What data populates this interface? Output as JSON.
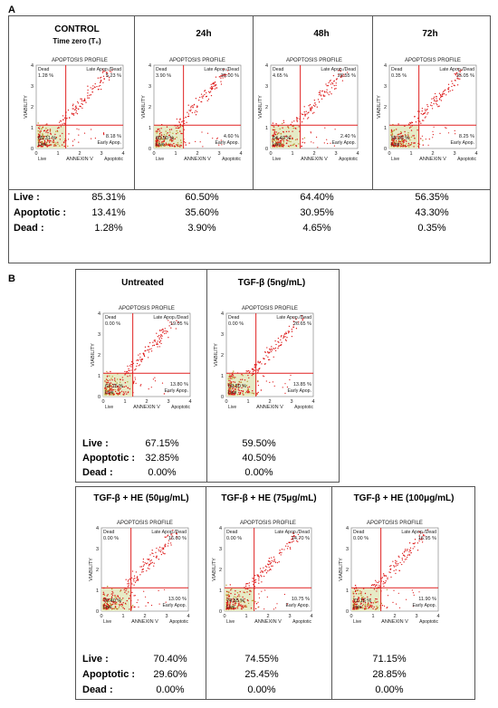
{
  "panel_a": {
    "letter": "A",
    "columns": [
      {
        "title": "CONTROL",
        "subtitle": "Time zero (T₀)",
        "plot": {
          "dead": "1.28 %",
          "late": "5.23 %",
          "live": "85.31 %",
          "early": "8.18 %"
        },
        "live": "85.31%",
        "apoptotic": "13.41%",
        "dead": "1.28%"
      },
      {
        "title": "24h",
        "subtitle": "",
        "plot": {
          "dead": "3.90 %",
          "late": "31.00 %",
          "live": "60.50 %",
          "early": "4.60 %"
        },
        "live": "60.50%",
        "apoptotic": "35.60%",
        "dead": "3.90%"
      },
      {
        "title": "48h",
        "subtitle": "",
        "plot": {
          "dead": "4.65 %",
          "late": "28.55 %",
          "live": "64.40 %",
          "early": "2.40 %"
        },
        "live": "64.40%",
        "apoptotic": "30.95%",
        "dead": "4.65%"
      },
      {
        "title": "72h",
        "subtitle": "",
        "plot": {
          "dead": "0.35 %",
          "late": "35.05 %",
          "live": "56.35 %",
          "early": "8.25 %"
        },
        "live": "56.35%",
        "apoptotic": "43.30%",
        "dead": "0.35%"
      }
    ]
  },
  "panel_b": {
    "letter": "B",
    "top": [
      {
        "title": "Untreated",
        "plot": {
          "dead": "0.00 %",
          "late": "19.05 %",
          "live": "67.15 %",
          "early": "13.80 %"
        },
        "live": "67.15%",
        "apoptotic": "32.85%",
        "dead": "0.00%"
      },
      {
        "title": "TGF-β (5ng/mL)",
        "plot": {
          "dead": "0.00 %",
          "late": "26.65 %",
          "live": "59.50 %",
          "early": "13.85 %"
        },
        "live": "59.50%",
        "apoptotic": "40.50%",
        "dead": "0.00%"
      }
    ],
    "bottom": [
      {
        "title": "TGF-β + HE (50μg/mL)",
        "plot": {
          "dead": "0.00 %",
          "late": "16.60 %",
          "live": "70.40 %",
          "early": "13.00 %"
        },
        "live": "70.40%",
        "apoptotic": "29.60%",
        "dead": "0.00%"
      },
      {
        "title": "TGF-β + HE (75μg/mL)",
        "plot": {
          "dead": "0.00 %",
          "late": "14.70 %",
          "live": "74.55 %",
          "early": "10.75 %"
        },
        "live": "74.55%",
        "apoptotic": "25.45%",
        "dead": "0.00%"
      },
      {
        "title": "TGF-β + HE (100μg/mL)",
        "plot": {
          "dead": "0.00 %",
          "late": "16.95 %",
          "live": "71.15 %",
          "early": "11.90 %"
        },
        "live": "71.15%",
        "apoptotic": "28.85%",
        "dead": "0.00%"
      }
    ]
  },
  "row_labels": {
    "live": "Live :",
    "apoptotic": "Apoptotic :",
    "dead": "Dead :"
  },
  "plot_labels": {
    "heading": "APOPTOSIS PROFILE",
    "dead": "Dead",
    "late": "Late Apop./Dead",
    "live": "Live",
    "early": "Early Apop.",
    "y_axis": "VIABILITY",
    "x_axis": "ANNEXIN V",
    "x_right": "Apoptotic",
    "ticks": [
      "0",
      "1",
      "2",
      "3",
      "4"
    ]
  },
  "colors": {
    "quadrant": "#e02020",
    "points": "#dd1515",
    "live_zone": "#e6ebc6",
    "live_dots": "#b89a2a"
  }
}
